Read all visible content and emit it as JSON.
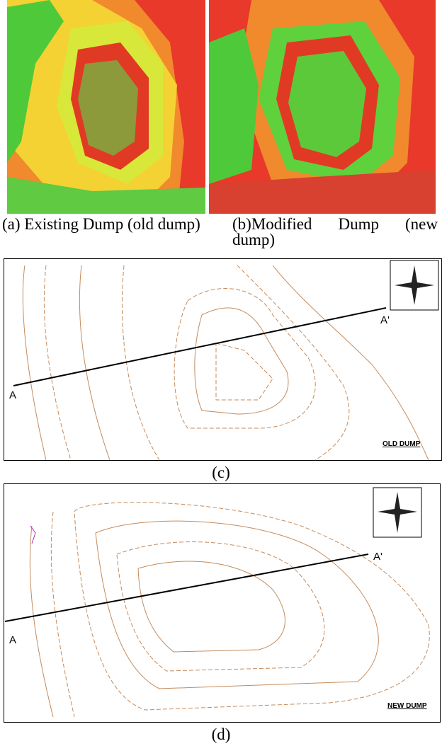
{
  "panels": [
    {
      "caption": "(a) Existing Dump (old dump)"
    },
    {
      "caption": "(b)Modified Dump (new dump)"
    }
  ],
  "maps": [
    {
      "section_start": "A",
      "section_end": "A'",
      "label": "OLD DUMP",
      "caption": "(c)"
    },
    {
      "section_start": "A",
      "section_end": "A'",
      "label": "NEW DUMP",
      "caption": "(d)"
    }
  ]
}
